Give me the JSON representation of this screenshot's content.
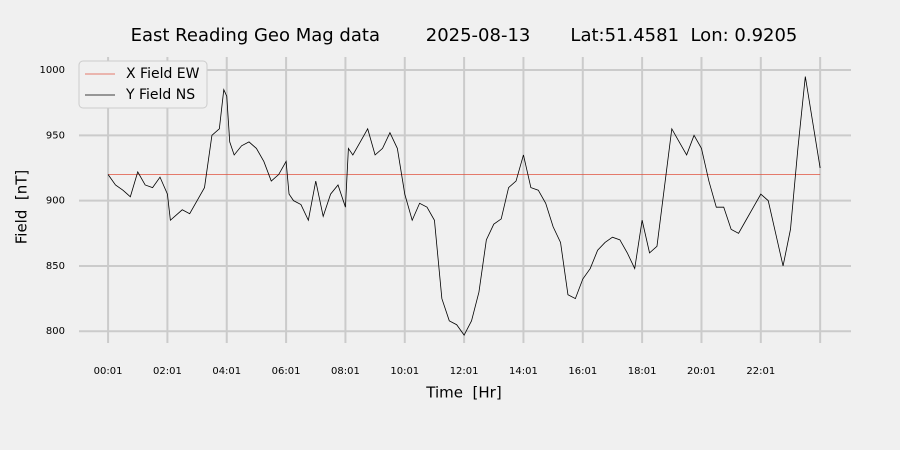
{
  "chart_data": {
    "type": "line",
    "title": "East Reading Geo Mag data        2025-08-13       Lat:51.4581  Lon: 0.9205",
    "x_label": "Time  [Hr]",
    "y_label": "Field  [nT]",
    "xlim": [
      -0.98,
      25.04
    ],
    "ylim": [
      791,
      1010
    ],
    "xticks": [
      {
        "value": 0,
        "label": "00:01"
      },
      {
        "value": 2,
        "label": "02:01"
      },
      {
        "value": 4,
        "label": "04:01"
      },
      {
        "value": 6,
        "label": "06:01"
      },
      {
        "value": 8,
        "label": "08:01"
      },
      {
        "value": 10,
        "label": "10:01"
      },
      {
        "value": 12,
        "label": "12:01"
      },
      {
        "value": 14,
        "label": "14:01"
      },
      {
        "value": 16,
        "label": "16:01"
      },
      {
        "value": 18,
        "label": "18:01"
      },
      {
        "value": 20,
        "label": "20:01"
      },
      {
        "value": 22,
        "label": "22:01"
      },
      {
        "value": 24,
        "label": null
      }
    ],
    "yticks": [
      800,
      850,
      900,
      950,
      1000
    ],
    "grid": true,
    "legend": "upper-left",
    "series": [
      {
        "name": "X Field EW",
        "color": "#e0533f",
        "x": [
          0,
          24
        ],
        "values": [
          920,
          920
        ]
      },
      {
        "name": "Y Field NS",
        "color": "#000000",
        "x": [
          0,
          0.25,
          0.5,
          0.75,
          1,
          1.25,
          1.5,
          1.75,
          2,
          2.1,
          2.25,
          2.5,
          2.75,
          3,
          3.25,
          3.5,
          3.75,
          3.9,
          4,
          4.1,
          4.25,
          4.5,
          4.75,
          5,
          5.25,
          5.5,
          5.75,
          6,
          6.1,
          6.25,
          6.5,
          6.75,
          7,
          7.25,
          7.5,
          7.75,
          8,
          8.1,
          8.25,
          8.5,
          8.75,
          9,
          9.25,
          9.5,
          9.75,
          10,
          10.25,
          10.5,
          10.75,
          11,
          11.25,
          11.5,
          11.75,
          12,
          12.25,
          12.5,
          12.75,
          13,
          13.25,
          13.5,
          13.75,
          14,
          14.25,
          14.5,
          14.75,
          15,
          15.25,
          15.5,
          15.75,
          16,
          16.25,
          16.5,
          16.75,
          17,
          17.25,
          17.5,
          17.75,
          18,
          18.25,
          18.5,
          18.75,
          19,
          19.25,
          19.5,
          19.75,
          20,
          20.25,
          20.5,
          20.75,
          21,
          21.25,
          21.5,
          21.75,
          22,
          22.25,
          22.5,
          22.75,
          23,
          23.25,
          23.5,
          23.75,
          24
        ],
        "values": [
          920,
          912,
          908,
          903,
          922,
          912,
          910,
          918,
          905,
          885,
          888,
          893,
          890,
          900,
          910,
          950,
          955,
          985,
          980,
          945,
          935,
          942,
          945,
          940,
          930,
          915,
          920,
          930,
          905,
          900,
          897,
          885,
          915,
          888,
          905,
          912,
          895,
          940,
          935,
          945,
          955,
          935,
          940,
          952,
          940,
          905,
          885,
          898,
          895,
          885,
          825,
          808,
          805,
          797,
          808,
          830,
          870,
          882,
          886,
          910,
          915,
          935,
          910,
          908,
          898,
          880,
          868,
          828,
          825,
          840,
          848,
          862,
          868,
          872,
          870,
          860,
          848,
          885,
          860,
          865,
          910,
          955,
          945,
          935,
          950,
          940,
          915,
          895,
          895,
          878,
          875,
          885,
          895,
          905,
          900,
          875,
          850,
          878,
          940,
          995,
          960,
          925
        ]
      }
    ]
  }
}
